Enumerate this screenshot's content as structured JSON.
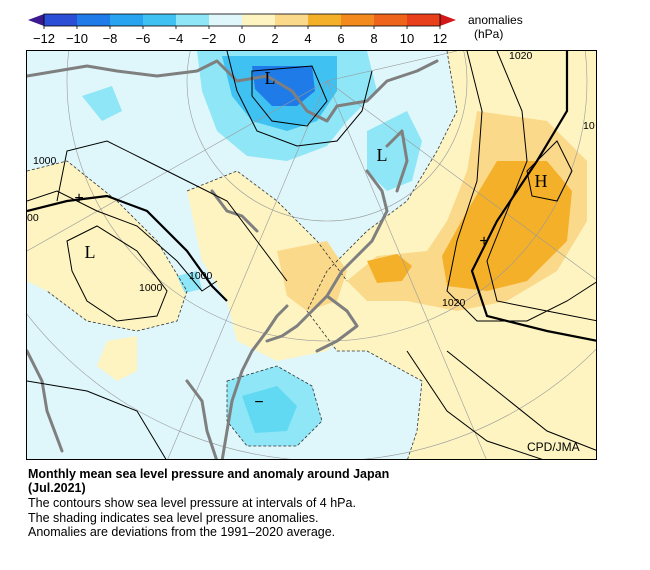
{
  "legend": {
    "title": "anomalies",
    "unit": "(hPa)",
    "ticks": [
      "−12",
      "−10",
      "−8",
      "−6",
      "−4",
      "−2",
      "0",
      "2",
      "4",
      "6",
      "8",
      "10",
      "12"
    ]
  },
  "map": {
    "pressure_centers": [
      {
        "label": "L"
      },
      {
        "label": "L"
      },
      {
        "label": "L"
      },
      {
        "label": "H"
      }
    ],
    "anomaly_signs": [
      {
        "label": "+"
      },
      {
        "label": "+"
      },
      {
        "label": "−"
      }
    ],
    "contour_labels": [
      "1000",
      "1000",
      "1000",
      "1020",
      "1020",
      "10",
      "00"
    ],
    "credit": "CPD/JMA"
  },
  "caption": {
    "title_line1": "Monthly mean sea level pressure and anomaly around Japan",
    "title_line2": "(Jul.2021)",
    "line1": "The contours show sea level pressure at intervals of 4 hPa.",
    "line2": "The shading indicates sea level pressure anomalies.",
    "line3": "Anomalies are deviations from the 1991–2020 average."
  },
  "colors": {
    "neg_strong": "#1a3ec8",
    "neg_mid": "#27a3f0",
    "neg_light": "#62d9f2",
    "neg_faint": "#dff7fb",
    "pos_faint": "#fdf4c2",
    "pos_light": "#fbd98b",
    "pos_mid": "#f5b02a",
    "pos_strong": "#e8401a",
    "coast": "#7f7f7f"
  }
}
